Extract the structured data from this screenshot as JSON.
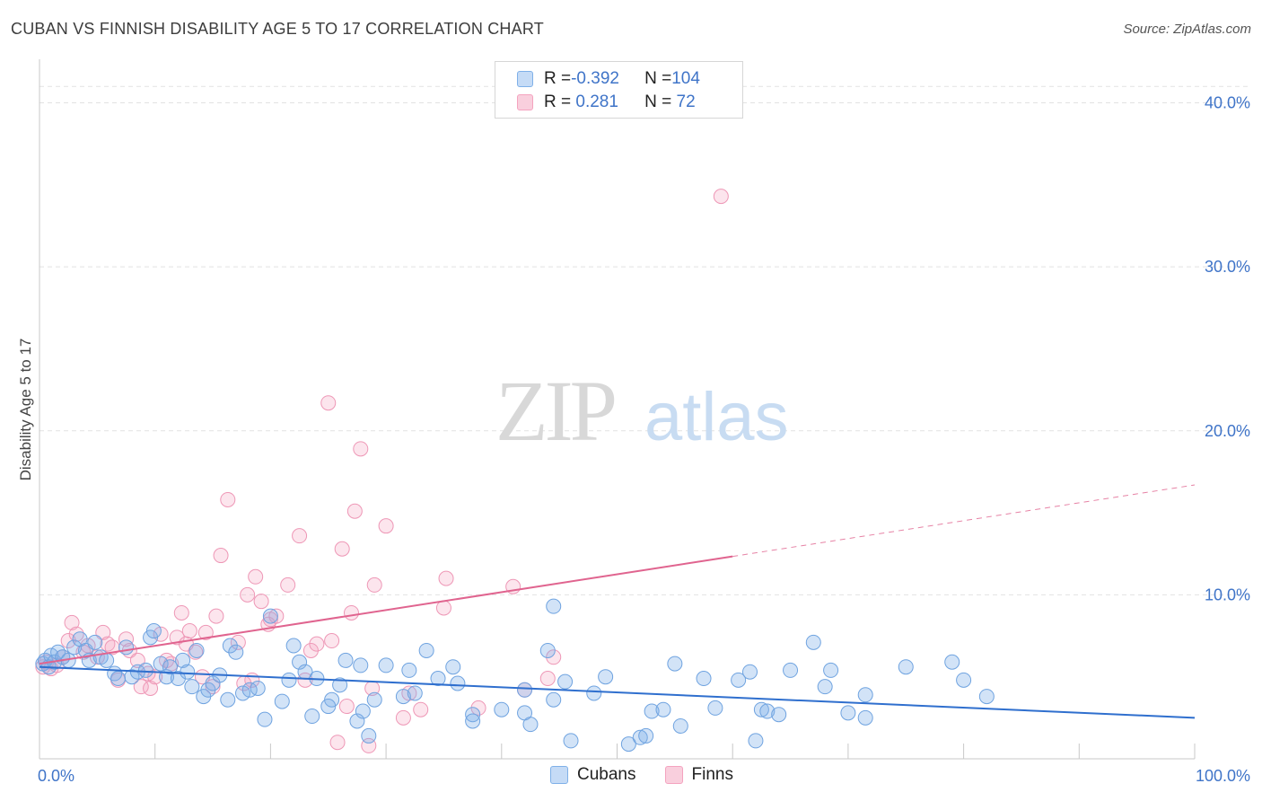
{
  "title": "CUBAN VS FINNISH DISABILITY AGE 5 TO 17 CORRELATION CHART",
  "source": "Source: ZipAtlas.com",
  "watermark": {
    "zip": "ZIP",
    "atlas": "atlas"
  },
  "colors": {
    "cubans": "#7fb0e8",
    "cubans_line": "#2f6fce",
    "finns": "#f4a3bf",
    "finns_line": "#e0648f",
    "tick": "#3f74c8"
  },
  "legend": {
    "rows": [
      {
        "r_label": "R = ",
        "r_value": "-0.392",
        "n_label": "N = ",
        "n_value": "104"
      },
      {
        "r_label": "R = ",
        "r_value": " 0.281",
        "n_label": "N = ",
        "n_value": " 72"
      }
    ]
  },
  "bottom_legend": [
    "Cubans",
    "Finns"
  ],
  "chart_data": {
    "type": "scatter",
    "title": "CUBAN VS FINNISH DISABILITY AGE 5 TO 17 CORRELATION CHART",
    "xlabel": "",
    "ylabel": "Disability Age 5 to 17",
    "xlim": [
      0,
      100
    ],
    "ylim": [
      0,
      42
    ],
    "x_ticks": [
      "0.0%",
      "100.0%"
    ],
    "y_ticks": [
      {
        "value": 10,
        "label": "10.0%"
      },
      {
        "value": 20,
        "label": "20.0%"
      },
      {
        "value": 30,
        "label": "30.0%"
      },
      {
        "value": 40,
        "label": "40.0%"
      }
    ],
    "grid": true,
    "series": [
      {
        "name": "Cubans",
        "trend": {
          "x1": 0,
          "y1": 5.6,
          "x2": 100,
          "y2": 2.5,
          "dashed_from": null
        },
        "points": [
          [
            0.3,
            5.8
          ],
          [
            0.5,
            6.0
          ],
          [
            0.8,
            5.6
          ],
          [
            1.0,
            6.3
          ],
          [
            1.3,
            5.9
          ],
          [
            1.6,
            6.5
          ],
          [
            2.0,
            6.2
          ],
          [
            2.5,
            6.0
          ],
          [
            3.0,
            6.8
          ],
          [
            3.5,
            7.3
          ],
          [
            4.0,
            6.6
          ],
          [
            4.3,
            6.0
          ],
          [
            4.8,
            7.1
          ],
          [
            5.3,
            6.2
          ],
          [
            5.8,
            6.0
          ],
          [
            6.5,
            5.2
          ],
          [
            6.8,
            4.9
          ],
          [
            7.5,
            6.8
          ],
          [
            8.0,
            5.0
          ],
          [
            8.5,
            5.3
          ],
          [
            9.2,
            5.4
          ],
          [
            9.6,
            7.4
          ],
          [
            9.9,
            7.8
          ],
          [
            10.5,
            5.8
          ],
          [
            11.0,
            5.0
          ],
          [
            11.3,
            5.6
          ],
          [
            12.0,
            4.9
          ],
          [
            12.4,
            6.0
          ],
          [
            12.8,
            5.3
          ],
          [
            13.2,
            4.4
          ],
          [
            13.6,
            6.6
          ],
          [
            14.2,
            3.8
          ],
          [
            14.6,
            4.2
          ],
          [
            15.0,
            4.6
          ],
          [
            15.6,
            5.1
          ],
          [
            16.3,
            3.6
          ],
          [
            16.5,
            6.9
          ],
          [
            17.0,
            6.5
          ],
          [
            17.6,
            4.0
          ],
          [
            18.2,
            4.2
          ],
          [
            18.9,
            4.3
          ],
          [
            19.5,
            2.4
          ],
          [
            20.0,
            8.7
          ],
          [
            21.0,
            3.5
          ],
          [
            21.6,
            4.8
          ],
          [
            22.0,
            6.9
          ],
          [
            22.5,
            5.9
          ],
          [
            23.0,
            5.3
          ],
          [
            23.6,
            2.6
          ],
          [
            24.0,
            4.9
          ],
          [
            25.3,
            3.6
          ],
          [
            25.0,
            3.2
          ],
          [
            26.0,
            4.5
          ],
          [
            26.5,
            6.0
          ],
          [
            27.5,
            2.3
          ],
          [
            27.8,
            5.7
          ],
          [
            28.0,
            2.9
          ],
          [
            28.5,
            1.4
          ],
          [
            29.0,
            3.6
          ],
          [
            30.0,
            5.7
          ],
          [
            31.5,
            3.8
          ],
          [
            32.0,
            5.4
          ],
          [
            32.5,
            4.0
          ],
          [
            33.5,
            6.6
          ],
          [
            34.5,
            4.9
          ],
          [
            35.8,
            5.6
          ],
          [
            36.2,
            4.6
          ],
          [
            37.5,
            2.7
          ],
          [
            37.5,
            2.3
          ],
          [
            40.0,
            3.0
          ],
          [
            42.0,
            2.8
          ],
          [
            42.5,
            2.1
          ],
          [
            42.0,
            4.2
          ],
          [
            44.0,
            6.6
          ],
          [
            44.5,
            3.6
          ],
          [
            44.5,
            9.3
          ],
          [
            45.5,
            4.7
          ],
          [
            46.0,
            1.1
          ],
          [
            48.0,
            4.0
          ],
          [
            49.0,
            5.0
          ],
          [
            51.0,
            0.9
          ],
          [
            52.0,
            1.3
          ],
          [
            52.5,
            1.4
          ],
          [
            53.0,
            2.9
          ],
          [
            54.0,
            3.0
          ],
          [
            55.0,
            5.8
          ],
          [
            55.5,
            2.0
          ],
          [
            57.5,
            4.9
          ],
          [
            58.5,
            3.1
          ],
          [
            60.5,
            4.8
          ],
          [
            61.5,
            5.3
          ],
          [
            62.0,
            1.1
          ],
          [
            62.5,
            3.0
          ],
          [
            63.0,
            2.9
          ],
          [
            64.0,
            2.7
          ],
          [
            65.0,
            5.4
          ],
          [
            67.0,
            7.1
          ],
          [
            68.0,
            4.4
          ],
          [
            68.5,
            5.4
          ],
          [
            70.0,
            2.8
          ],
          [
            71.5,
            3.9
          ],
          [
            71.5,
            2.5
          ],
          [
            75.0,
            5.6
          ],
          [
            79.0,
            5.9
          ],
          [
            80.0,
            4.8
          ],
          [
            82.0,
            3.8
          ]
        ]
      },
      {
        "name": "Finns",
        "trend": {
          "x1": 0,
          "y1": 5.8,
          "x2": 100,
          "y2": 16.7,
          "dashed_from": 60
        },
        "points": [
          [
            0.3,
            5.6
          ],
          [
            0.6,
            5.9
          ],
          [
            1.0,
            5.5
          ],
          [
            1.5,
            5.7
          ],
          [
            2.0,
            6.2
          ],
          [
            2.5,
            7.2
          ],
          [
            2.8,
            8.3
          ],
          [
            3.2,
            7.6
          ],
          [
            3.8,
            6.5
          ],
          [
            4.2,
            6.9
          ],
          [
            5.0,
            6.2
          ],
          [
            5.5,
            7.7
          ],
          [
            5.9,
            7.0
          ],
          [
            6.3,
            6.8
          ],
          [
            6.8,
            4.8
          ],
          [
            7.5,
            7.3
          ],
          [
            7.8,
            6.6
          ],
          [
            8.5,
            6.0
          ],
          [
            8.8,
            4.4
          ],
          [
            9.4,
            5.2
          ],
          [
            9.6,
            4.3
          ],
          [
            10.0,
            5.0
          ],
          [
            10.5,
            7.6
          ],
          [
            11.0,
            6.0
          ],
          [
            11.4,
            5.8
          ],
          [
            11.9,
            7.4
          ],
          [
            12.3,
            8.9
          ],
          [
            12.7,
            7.0
          ],
          [
            13.0,
            7.8
          ],
          [
            13.5,
            6.5
          ],
          [
            14.1,
            5.0
          ],
          [
            14.4,
            7.7
          ],
          [
            15.0,
            4.4
          ],
          [
            15.3,
            8.7
          ],
          [
            15.7,
            12.4
          ],
          [
            16.3,
            15.8
          ],
          [
            17.2,
            7.1
          ],
          [
            17.7,
            4.6
          ],
          [
            18.0,
            10.0
          ],
          [
            18.4,
            4.8
          ],
          [
            18.7,
            11.1
          ],
          [
            19.2,
            9.6
          ],
          [
            19.8,
            8.2
          ],
          [
            20.0,
            8.5
          ],
          [
            20.5,
            8.7
          ],
          [
            21.5,
            10.6
          ],
          [
            22.5,
            13.6
          ],
          [
            23.0,
            4.8
          ],
          [
            23.5,
            6.6
          ],
          [
            24.0,
            7.0
          ],
          [
            25.0,
            21.7
          ],
          [
            25.3,
            7.2
          ],
          [
            25.8,
            1.0
          ],
          [
            26.2,
            12.8
          ],
          [
            26.6,
            3.2
          ],
          [
            27.0,
            8.9
          ],
          [
            27.3,
            15.1
          ],
          [
            27.8,
            18.9
          ],
          [
            28.5,
            0.8
          ],
          [
            28.8,
            4.3
          ],
          [
            29.0,
            10.6
          ],
          [
            30.0,
            14.2
          ],
          [
            31.5,
            2.5
          ],
          [
            32.0,
            4.0
          ],
          [
            33.0,
            3.0
          ],
          [
            35.0,
            9.2
          ],
          [
            35.2,
            11.0
          ],
          [
            38.0,
            3.1
          ],
          [
            41.0,
            10.5
          ],
          [
            42.0,
            4.2
          ],
          [
            44.0,
            4.9
          ],
          [
            44.5,
            6.2
          ],
          [
            59.0,
            34.3
          ]
        ]
      }
    ]
  }
}
